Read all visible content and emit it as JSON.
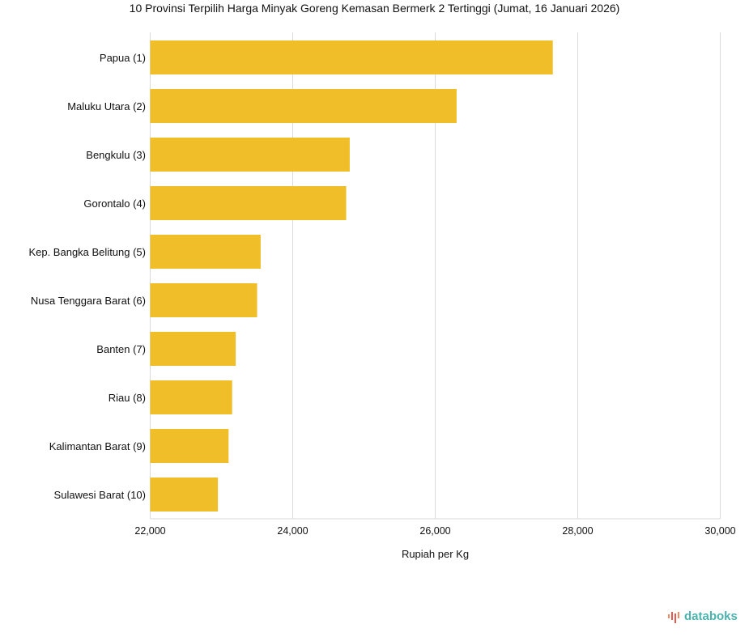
{
  "chart_data": {
    "type": "bar",
    "orientation": "horizontal",
    "title": "10 Provinsi Terpilih Harga Minyak Goreng Kemasan Bermerk 2 Tertinggi (Jumat, 16 Januari 2026)",
    "xlabel": "Rupiah per Kg",
    "ylabel": "",
    "categories": [
      "Papua (1)",
      "Maluku Utara (2)",
      "Bengkulu (3)",
      "Gorontalo (4)",
      "Kep. Bangka Belitung (5)",
      "Nusa Tenggara Barat (6)",
      "Banten (7)",
      "Riau (8)",
      "Kalimantan Barat (9)",
      "Sulawesi Barat (10)"
    ],
    "values": [
      27650,
      26300,
      24800,
      24750,
      23550,
      23500,
      23200,
      23150,
      23100,
      22950
    ],
    "xlim": [
      22000,
      30000
    ],
    "xticks": [
      22000,
      24000,
      26000,
      28000,
      30000
    ],
    "xtick_labels": [
      "22,000",
      "24,000",
      "26,000",
      "28,000",
      "30,000"
    ],
    "grid": true,
    "bar_color": "#F0BE28"
  },
  "brand": {
    "name": "databoks",
    "color": "#4bb3ad"
  }
}
